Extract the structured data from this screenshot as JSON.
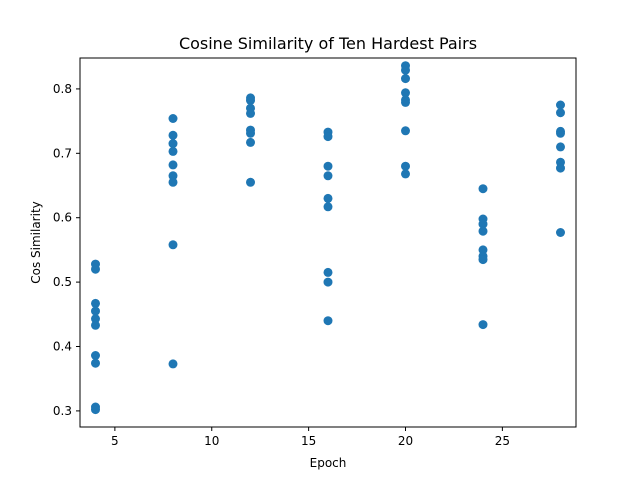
{
  "chart_data": {
    "type": "scatter",
    "title": "Cosine Similarity of Ten Hardest Pairs",
    "xlabel": "Epoch",
    "ylabel": "Cos Similarity",
    "xlim": [
      3.2,
      28.8
    ],
    "ylim": [
      0.275,
      0.848
    ],
    "xticks": [
      5,
      10,
      15,
      20,
      25
    ],
    "yticks": [
      0.3,
      0.4,
      0.5,
      0.6,
      0.7,
      0.8
    ],
    "grid": false,
    "legend": "none",
    "color": "#1f77b4",
    "series": [
      {
        "points": [
          [
            4,
            0.528
          ],
          [
            4,
            0.52
          ],
          [
            4,
            0.467
          ],
          [
            4,
            0.455
          ],
          [
            4,
            0.443
          ],
          [
            4,
            0.433
          ],
          [
            4,
            0.386
          ],
          [
            4,
            0.374
          ],
          [
            4,
            0.306
          ],
          [
            4,
            0.302
          ],
          [
            8,
            0.754
          ],
          [
            8,
            0.728
          ],
          [
            8,
            0.715
          ],
          [
            8,
            0.703
          ],
          [
            8,
            0.682
          ],
          [
            8,
            0.665
          ],
          [
            8,
            0.655
          ],
          [
            8,
            0.558
          ],
          [
            8,
            0.373
          ],
          [
            12,
            0.786
          ],
          [
            12,
            0.782
          ],
          [
            12,
            0.77
          ],
          [
            12,
            0.762
          ],
          [
            12,
            0.736
          ],
          [
            12,
            0.731
          ],
          [
            12,
            0.717
          ],
          [
            12,
            0.655
          ],
          [
            16,
            0.733
          ],
          [
            16,
            0.726
          ],
          [
            16,
            0.68
          ],
          [
            16,
            0.665
          ],
          [
            16,
            0.63
          ],
          [
            16,
            0.617
          ],
          [
            16,
            0.515
          ],
          [
            16,
            0.5
          ],
          [
            16,
            0.44
          ],
          [
            20,
            0.836
          ],
          [
            20,
            0.829
          ],
          [
            20,
            0.816
          ],
          [
            20,
            0.794
          ],
          [
            20,
            0.783
          ],
          [
            20,
            0.779
          ],
          [
            20,
            0.735
          ],
          [
            20,
            0.68
          ],
          [
            20,
            0.668
          ],
          [
            24,
            0.645
          ],
          [
            24,
            0.598
          ],
          [
            24,
            0.59
          ],
          [
            24,
            0.579
          ],
          [
            24,
            0.55
          ],
          [
            24,
            0.54
          ],
          [
            24,
            0.535
          ],
          [
            24,
            0.434
          ],
          [
            28,
            0.775
          ],
          [
            28,
            0.763
          ],
          [
            28,
            0.734
          ],
          [
            28,
            0.731
          ],
          [
            28,
            0.71
          ],
          [
            28,
            0.686
          ],
          [
            28,
            0.677
          ],
          [
            28,
            0.577
          ]
        ]
      }
    ]
  }
}
